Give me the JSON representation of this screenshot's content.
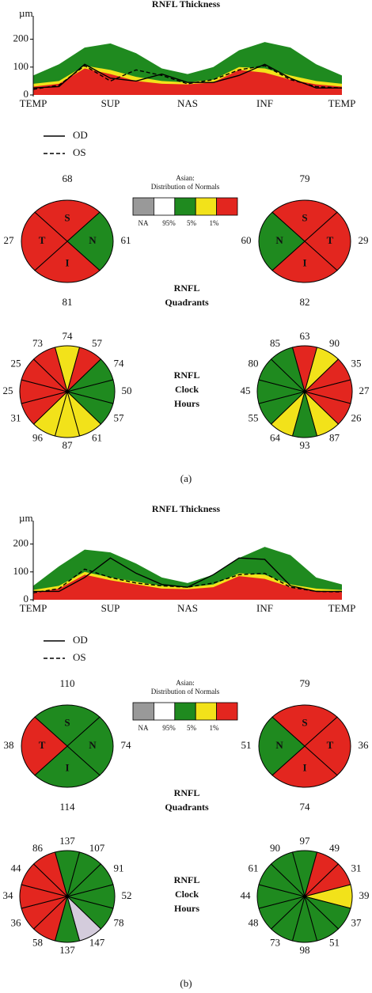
{
  "panels": [
    {
      "label": "(a)",
      "thickness": {
        "title": "RNFL Thickness",
        "unit": "µm",
        "ylim": [
          0,
          250
        ],
        "yticks": [
          0,
          100,
          200
        ],
        "x_labels": [
          "TEMP",
          "SUP",
          "NAS",
          "INF",
          "TEMP"
        ],
        "bands": [
          {
            "color": "#1f8a1f",
            "values": [
              70,
              110,
              170,
              185,
              150,
              95,
              75,
              100,
              160,
              190,
              170,
              110,
              70
            ]
          },
          {
            "color": "#f2e21a",
            "values": [
              40,
              50,
              105,
              90,
              65,
              50,
              45,
              55,
              100,
              95,
              70,
              50,
              40
            ]
          },
          {
            "color": "#e3261f",
            "values": [
              30,
              40,
              95,
              75,
              50,
              40,
              38,
              45,
              90,
              80,
              55,
              38,
              30
            ]
          }
        ],
        "series": [
          {
            "name": "OD",
            "values": [
              25,
              30,
              110,
              60,
              50,
              75,
              45,
              45,
              70,
              110,
              60,
              25,
              25
            ]
          },
          {
            "name": "OS",
            "values": [
              20,
              35,
              105,
              50,
              90,
              70,
              40,
              55,
              90,
              105,
              55,
              30,
              25
            ]
          }
        ]
      },
      "legend": {
        "title": [
          "Asian:",
          "Distribution of Normals"
        ],
        "colors": [
          "#999999",
          "#ffffff",
          "#1f8a1f",
          "#f2e21a",
          "#e3261f"
        ],
        "labels": [
          "NA",
          "95%",
          "5%",
          "1%"
        ]
      },
      "quadrants": {
        "title": [
          "RNFL",
          "Quadrants"
        ],
        "OD": [
          {
            "letter": "S",
            "value": 68,
            "color": "#e3261f"
          },
          {
            "letter": "N",
            "value": 61,
            "color": "#1f8a1f"
          },
          {
            "letter": "I",
            "value": 81,
            "color": "#e3261f"
          },
          {
            "letter": "T",
            "value": 27,
            "color": "#e3261f"
          }
        ],
        "OS": [
          {
            "letter": "S",
            "value": 79,
            "color": "#e3261f"
          },
          {
            "letter": "T",
            "value": 29,
            "color": "#e3261f"
          },
          {
            "letter": "I",
            "value": 82,
            "color": "#e3261f"
          },
          {
            "letter": "N",
            "value": 60,
            "color": "#1f8a1f"
          }
        ]
      },
      "clock_hours": {
        "title": [
          "RNFL",
          "Clock",
          "Hours"
        ],
        "OD": [
          {
            "value": 74,
            "color": "#f2e21a"
          },
          {
            "value": 57,
            "color": "#e3261f"
          },
          {
            "value": 74,
            "color": "#1f8a1f"
          },
          {
            "value": 50,
            "color": "#1f8a1f"
          },
          {
            "value": 57,
            "color": "#1f8a1f"
          },
          {
            "value": 61,
            "color": "#f2e21a"
          },
          {
            "value": 87,
            "color": "#f2e21a"
          },
          {
            "value": 96,
            "color": "#f2e21a"
          },
          {
            "value": 31,
            "color": "#e3261f"
          },
          {
            "value": 25,
            "color": "#e3261f"
          },
          {
            "value": 25,
            "color": "#e3261f"
          },
          {
            "value": 73,
            "color": "#e3261f"
          }
        ],
        "OS": [
          {
            "value": 63,
            "color": "#e3261f"
          },
          {
            "value": 90,
            "color": "#f2e21a"
          },
          {
            "value": 35,
            "color": "#e3261f"
          },
          {
            "value": 27,
            "color": "#e3261f"
          },
          {
            "value": 26,
            "color": "#e3261f"
          },
          {
            "value": 87,
            "color": "#f2e21a"
          },
          {
            "value": 93,
            "color": "#1f8a1f"
          },
          {
            "value": 64,
            "color": "#f2e21a"
          },
          {
            "value": 55,
            "color": "#1f8a1f"
          },
          {
            "value": 45,
            "color": "#1f8a1f"
          },
          {
            "value": 80,
            "color": "#1f8a1f"
          },
          {
            "value": 85,
            "color": "#1f8a1f"
          }
        ]
      }
    },
    {
      "label": "(b)",
      "thickness": {
        "title": "RNFL Thickness",
        "unit": "µm",
        "ylim": [
          0,
          250
        ],
        "yticks": [
          0,
          100,
          200
        ],
        "x_labels": [
          "TEMP",
          "SUP",
          "NAS",
          "INF",
          "TEMP"
        ],
        "bands": [
          {
            "color": "#1f8a1f",
            "values": [
              50,
              120,
              180,
              170,
              130,
              80,
              60,
              90,
              150,
              190,
              160,
              80,
              55
            ]
          },
          {
            "color": "#f2e21a",
            "values": [
              35,
              50,
              100,
              80,
              65,
              50,
              45,
              55,
              95,
              90,
              55,
              40,
              35
            ]
          },
          {
            "color": "#e3261f",
            "values": [
              25,
              40,
              90,
              70,
              55,
              40,
              38,
              45,
              85,
              75,
              45,
              32,
              28
            ]
          }
        ],
        "series": [
          {
            "name": "OD",
            "values": [
              30,
              30,
              80,
              150,
              95,
              55,
              45,
              90,
              150,
              145,
              50,
              30,
              30
            ]
          },
          {
            "name": "OS",
            "values": [
              25,
              40,
              110,
              80,
              60,
              50,
              45,
              60,
              90,
              95,
              45,
              30,
              28
            ]
          }
        ]
      },
      "legend": {
        "title": [
          "Asian:",
          "Distribution of Normals"
        ],
        "colors": [
          "#999999",
          "#ffffff",
          "#1f8a1f",
          "#f2e21a",
          "#e3261f"
        ],
        "labels": [
          "NA",
          "95%",
          "5%",
          "1%"
        ]
      },
      "quadrants": {
        "title": [
          "RNFL",
          "Quadrants"
        ],
        "OD": [
          {
            "letter": "S",
            "value": 110,
            "color": "#1f8a1f"
          },
          {
            "letter": "N",
            "value": 74,
            "color": "#1f8a1f"
          },
          {
            "letter": "I",
            "value": 114,
            "color": "#1f8a1f"
          },
          {
            "letter": "T",
            "value": 38,
            "color": "#e3261f"
          }
        ],
        "OS": [
          {
            "letter": "S",
            "value": 79,
            "color": "#e3261f"
          },
          {
            "letter": "T",
            "value": 36,
            "color": "#e3261f"
          },
          {
            "letter": "I",
            "value": 74,
            "color": "#e3261f"
          },
          {
            "letter": "N",
            "value": 51,
            "color": "#1f8a1f"
          }
        ]
      },
      "clock_hours": {
        "title": [
          "RNFL",
          "Clock",
          "Hours"
        ],
        "OD": [
          {
            "value": 137,
            "color": "#1f8a1f"
          },
          {
            "value": 107,
            "color": "#1f8a1f"
          },
          {
            "value": 91,
            "color": "#1f8a1f"
          },
          {
            "value": 52,
            "color": "#1f8a1f"
          },
          {
            "value": 78,
            "color": "#1f8a1f"
          },
          {
            "value": 147,
            "color": "#d4ccdc"
          },
          {
            "value": 137,
            "color": "#1f8a1f"
          },
          {
            "value": 58,
            "color": "#e3261f"
          },
          {
            "value": 36,
            "color": "#e3261f"
          },
          {
            "value": 34,
            "color": "#e3261f"
          },
          {
            "value": 44,
            "color": "#e3261f"
          },
          {
            "value": 86,
            "color": "#e3261f"
          }
        ],
        "OS": [
          {
            "value": 97,
            "color": "#1f8a1f"
          },
          {
            "value": 49,
            "color": "#e3261f"
          },
          {
            "value": 31,
            "color": "#e3261f"
          },
          {
            "value": 39,
            "color": "#f2e21a"
          },
          {
            "value": 37,
            "color": "#1f8a1f"
          },
          {
            "value": 51,
            "color": "#1f8a1f"
          },
          {
            "value": 98,
            "color": "#1f8a1f"
          },
          {
            "value": 73,
            "color": "#1f8a1f"
          },
          {
            "value": 48,
            "color": "#1f8a1f"
          },
          {
            "value": 44,
            "color": "#1f8a1f"
          },
          {
            "value": 61,
            "color": "#1f8a1f"
          },
          {
            "value": 90,
            "color": "#1f8a1f"
          }
        ]
      }
    }
  ]
}
